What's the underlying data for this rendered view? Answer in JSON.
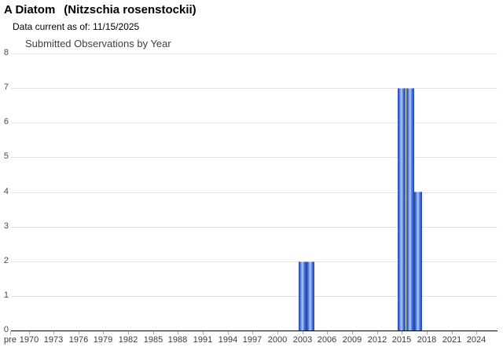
{
  "header": {
    "common_name": "A Diatom",
    "scientific_name": "(Nitzschia rosenstockii)",
    "data_current_text": "Data current as of: 11/15/2025"
  },
  "chart_data": {
    "type": "bar",
    "title": "Submitted Observations by Year",
    "xlabel": "",
    "ylabel": "",
    "ylim": [
      0,
      8
    ],
    "y_ticks": [
      0,
      1,
      2,
      3,
      4,
      5,
      6,
      7,
      8
    ],
    "x_tick_labels": [
      "pre",
      "1970",
      "1973",
      "1976",
      "1979",
      "1982",
      "1985",
      "1988",
      "1991",
      "1994",
      "1997",
      "2000",
      "2003",
      "2006",
      "2009",
      "2012",
      "2015",
      "2018",
      "2021",
      "2024"
    ],
    "grid": true,
    "legend": "none",
    "bars": [
      {
        "year": 2003,
        "value": 2
      },
      {
        "year": 2004,
        "value": 2
      },
      {
        "year": 2015,
        "value": 7
      },
      {
        "year": 2016,
        "value": 7
      },
      {
        "year": 2017,
        "value": 4
      }
    ],
    "colors": {
      "bar_edge": "#1e44a6",
      "bar_mid": "#4f7ad8",
      "bar_highlight": "#a4bdf2",
      "gridline": "#e3e3e3",
      "axis_line": "#000000",
      "tick": "#a6a6a6",
      "tick_label": "#3a3a3a"
    }
  }
}
